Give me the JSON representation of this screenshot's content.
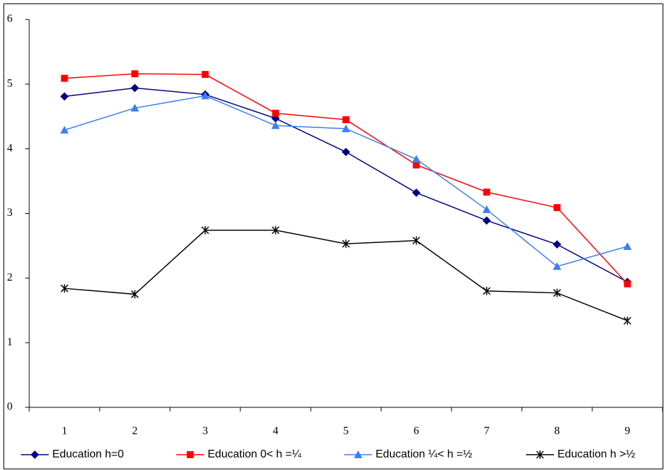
{
  "chart_data": {
    "type": "line",
    "categories": [
      1,
      2,
      3,
      4,
      5,
      6,
      7,
      8,
      9
    ],
    "ylim": [
      0,
      6
    ],
    "yticks": [
      0,
      1,
      2,
      3,
      4,
      5,
      6
    ],
    "legend": "bottom",
    "series": [
      {
        "name": "Education h=0",
        "color": "#000080",
        "marker": "diamond",
        "values": [
          4.81,
          4.94,
          4.84,
          4.47,
          3.95,
          3.32,
          2.89,
          2.52,
          1.94
        ]
      },
      {
        "name": "Education 0< h =¼",
        "color": "#ff0000",
        "marker": "square",
        "values": [
          5.09,
          5.16,
          5.15,
          4.55,
          4.45,
          3.75,
          3.33,
          3.09,
          1.91
        ]
      },
      {
        "name": "Education ¼< h =½",
        "color": "#3d7ef0",
        "marker": "triangle",
        "values": [
          4.29,
          4.63,
          4.82,
          4.36,
          4.31,
          3.84,
          3.06,
          2.18,
          2.49
        ]
      },
      {
        "name": "Education h >½",
        "color": "#000000",
        "marker": "star",
        "values": [
          1.84,
          1.75,
          2.74,
          2.74,
          2.53,
          2.58,
          1.8,
          1.77,
          1.34
        ]
      }
    ]
  }
}
